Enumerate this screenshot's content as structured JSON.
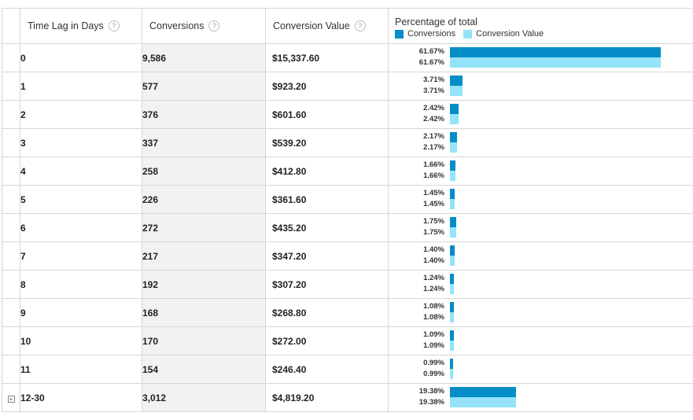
{
  "header": {
    "col_dim": "Time Lag in Days",
    "col_conv": "Conversions",
    "col_value": "Conversion Value",
    "help_glyph": "?",
    "col_pct": "Percentage of total",
    "legend_conv": "Conversions",
    "legend_value": "Conversion Value"
  },
  "colors": {
    "conversions": "#058dc7",
    "conversion_value": "#94e3f8"
  },
  "expand_glyph": "+",
  "rows": [
    {
      "lag": "0",
      "conversions": "9,586",
      "value": "$15,337.60",
      "pct_conv": "61.67%",
      "pct_value": "61.67%",
      "conv_frac": 0.6167,
      "value_frac": 0.6167
    },
    {
      "lag": "1",
      "conversions": "577",
      "value": "$923.20",
      "pct_conv": "3.71%",
      "pct_value": "3.71%",
      "conv_frac": 0.0371,
      "value_frac": 0.0371
    },
    {
      "lag": "2",
      "conversions": "376",
      "value": "$601.60",
      "pct_conv": "2.42%",
      "pct_value": "2.42%",
      "conv_frac": 0.0242,
      "value_frac": 0.0242
    },
    {
      "lag": "3",
      "conversions": "337",
      "value": "$539.20",
      "pct_conv": "2.17%",
      "pct_value": "2.17%",
      "conv_frac": 0.0217,
      "value_frac": 0.0217
    },
    {
      "lag": "4",
      "conversions": "258",
      "value": "$412.80",
      "pct_conv": "1.66%",
      "pct_value": "1.66%",
      "conv_frac": 0.0166,
      "value_frac": 0.0166
    },
    {
      "lag": "5",
      "conversions": "226",
      "value": "$361.60",
      "pct_conv": "1.45%",
      "pct_value": "1.45%",
      "conv_frac": 0.0145,
      "value_frac": 0.0145
    },
    {
      "lag": "6",
      "conversions": "272",
      "value": "$435.20",
      "pct_conv": "1.75%",
      "pct_value": "1.75%",
      "conv_frac": 0.0175,
      "value_frac": 0.0175
    },
    {
      "lag": "7",
      "conversions": "217",
      "value": "$347.20",
      "pct_conv": "1.40%",
      "pct_value": "1.40%",
      "conv_frac": 0.014,
      "value_frac": 0.014
    },
    {
      "lag": "8",
      "conversions": "192",
      "value": "$307.20",
      "pct_conv": "1.24%",
      "pct_value": "1.24%",
      "conv_frac": 0.0124,
      "value_frac": 0.0124
    },
    {
      "lag": "9",
      "conversions": "168",
      "value": "$268.80",
      "pct_conv": "1.08%",
      "pct_value": "1.08%",
      "conv_frac": 0.0108,
      "value_frac": 0.0108
    },
    {
      "lag": "10",
      "conversions": "170",
      "value": "$272.00",
      "pct_conv": "1.09%",
      "pct_value": "1.09%",
      "conv_frac": 0.0109,
      "value_frac": 0.0109
    },
    {
      "lag": "11",
      "conversions": "154",
      "value": "$246.40",
      "pct_conv": "0.99%",
      "pct_value": "0.99%",
      "conv_frac": 0.0099,
      "value_frac": 0.0099
    },
    {
      "lag": "12-30",
      "conversions": "3,012",
      "value": "$4,819.20",
      "pct_conv": "19.38%",
      "pct_value": "19.38%",
      "conv_frac": 0.1938,
      "value_frac": 0.1938,
      "expandable": true
    }
  ]
}
